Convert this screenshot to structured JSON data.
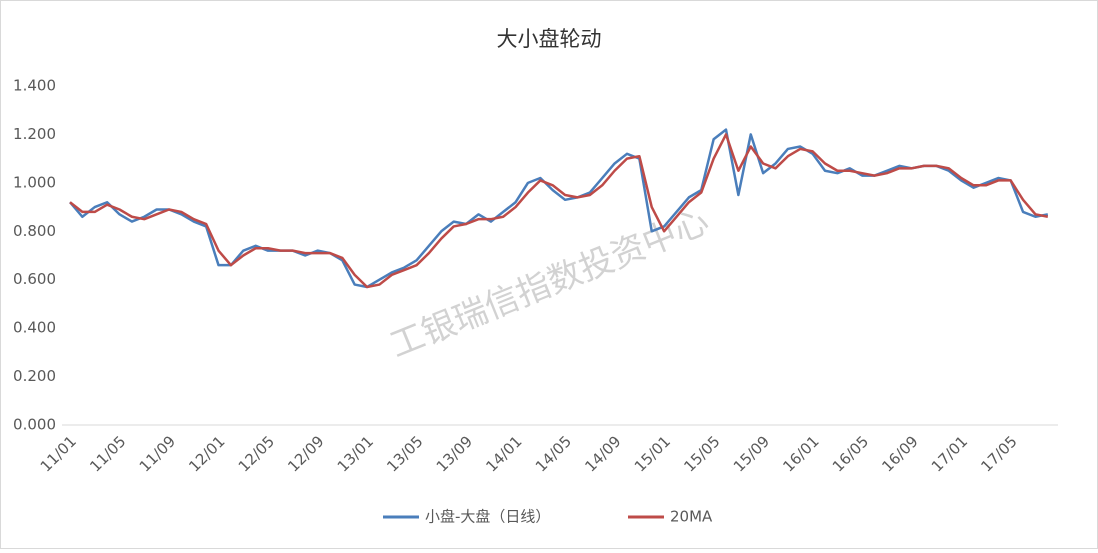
{
  "chart_data": {
    "type": "line",
    "title": "大小盘轮动",
    "watermark": "工银瑞信指数投资中心",
    "categories": [
      "11/01",
      null,
      null,
      null,
      "11/05",
      null,
      null,
      null,
      "11/09",
      null,
      null,
      null,
      "12/01",
      null,
      null,
      null,
      "12/05",
      null,
      null,
      null,
      "12/09",
      null,
      null,
      null,
      "13/01",
      null,
      null,
      null,
      "13/05",
      null,
      null,
      null,
      "13/09",
      null,
      null,
      null,
      "14/01",
      null,
      null,
      null,
      "14/05",
      null,
      null,
      null,
      "14/09",
      null,
      null,
      null,
      "15/01",
      null,
      null,
      null,
      "15/05",
      null,
      null,
      null,
      "15/09",
      null,
      null,
      null,
      "16/01",
      null,
      null,
      null,
      "16/05",
      null,
      null,
      null,
      "16/09",
      null,
      null,
      null,
      "17/01",
      null,
      null,
      null,
      "17/05",
      null,
      null,
      null
    ],
    "series": [
      {
        "name": "小盘-大盘（日线）",
        "color": "#4a7ebb",
        "values": [
          0.92,
          0.86,
          0.9,
          0.92,
          0.87,
          0.84,
          0.86,
          0.89,
          0.89,
          0.87,
          0.84,
          0.82,
          0.66,
          0.66,
          0.72,
          0.74,
          0.72,
          0.72,
          0.72,
          0.7,
          0.72,
          0.71,
          0.68,
          0.58,
          0.57,
          0.6,
          0.63,
          0.65,
          0.68,
          0.74,
          0.8,
          0.84,
          0.83,
          0.87,
          0.84,
          0.88,
          0.92,
          1.0,
          1.02,
          0.97,
          0.93,
          0.94,
          0.96,
          1.02,
          1.08,
          1.12,
          1.1,
          0.8,
          0.82,
          0.88,
          0.94,
          0.97,
          1.18,
          1.22,
          0.95,
          1.2,
          1.04,
          1.08,
          1.14,
          1.15,
          1.12,
          1.05,
          1.04,
          1.06,
          1.03,
          1.03,
          1.05,
          1.07,
          1.06,
          1.07,
          1.07,
          1.05,
          1.01,
          0.98,
          1.0,
          1.02,
          1.01,
          0.88,
          0.86,
          0.87
        ]
      },
      {
        "name": "20MA",
        "color": "#be4b48",
        "values": [
          0.92,
          0.88,
          0.88,
          0.91,
          0.89,
          0.86,
          0.85,
          0.87,
          0.89,
          0.88,
          0.85,
          0.83,
          0.72,
          0.66,
          0.7,
          0.73,
          0.73,
          0.72,
          0.72,
          0.71,
          0.71,
          0.71,
          0.69,
          0.62,
          0.57,
          0.58,
          0.62,
          0.64,
          0.66,
          0.71,
          0.77,
          0.82,
          0.83,
          0.85,
          0.85,
          0.86,
          0.9,
          0.96,
          1.01,
          0.99,
          0.95,
          0.94,
          0.95,
          0.99,
          1.05,
          1.1,
          1.11,
          0.9,
          0.8,
          0.86,
          0.92,
          0.96,
          1.1,
          1.2,
          1.05,
          1.15,
          1.08,
          1.06,
          1.11,
          1.14,
          1.13,
          1.08,
          1.05,
          1.05,
          1.04,
          1.03,
          1.04,
          1.06,
          1.06,
          1.07,
          1.07,
          1.06,
          1.02,
          0.99,
          0.99,
          1.01,
          1.01,
          0.93,
          0.87,
          0.86
        ]
      }
    ],
    "ylim": [
      0,
      1.4
    ],
    "yticks": [
      {
        "value": 0,
        "label": "0.000"
      },
      {
        "value": 0.2,
        "label": "0.200"
      },
      {
        "value": 0.4,
        "label": "0.400"
      },
      {
        "value": 0.6,
        "label": "0.600"
      },
      {
        "value": 0.8,
        "label": "0.800"
      },
      {
        "value": 1.0,
        "label": "1.000"
      },
      {
        "value": 1.2,
        "label": "1.200"
      },
      {
        "value": 1.4,
        "label": "1.400"
      }
    ],
    "grid": false,
    "legend": "bottom"
  }
}
